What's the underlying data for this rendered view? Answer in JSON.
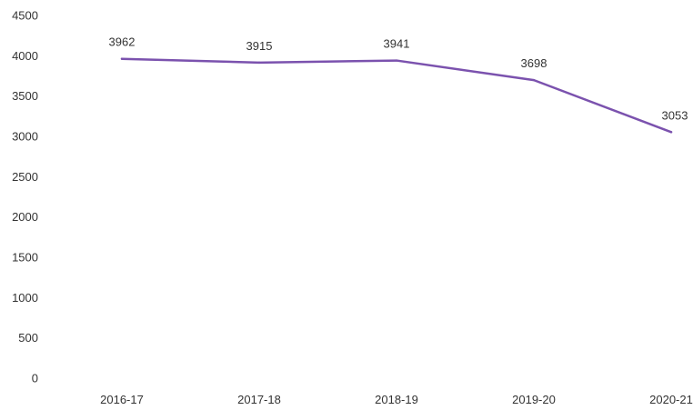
{
  "chart_data": {
    "type": "line",
    "categories": [
      "2016-17",
      "2017-18",
      "2018-19",
      "2019-20",
      "2020-21"
    ],
    "series": [
      {
        "values": [
          3962,
          3915,
          3941,
          3698,
          3053
        ]
      }
    ],
    "data_labels": [
      "3962",
      "3915",
      "3941",
      "3698",
      "3053"
    ],
    "y_ticks": [
      "0",
      "500",
      "1000",
      "1500",
      "2000",
      "2500",
      "3000",
      "3500",
      "4000",
      "4500"
    ],
    "ylim": [
      0,
      4500
    ],
    "grid": false,
    "legend": "none",
    "line_color": "#7b52ae"
  }
}
